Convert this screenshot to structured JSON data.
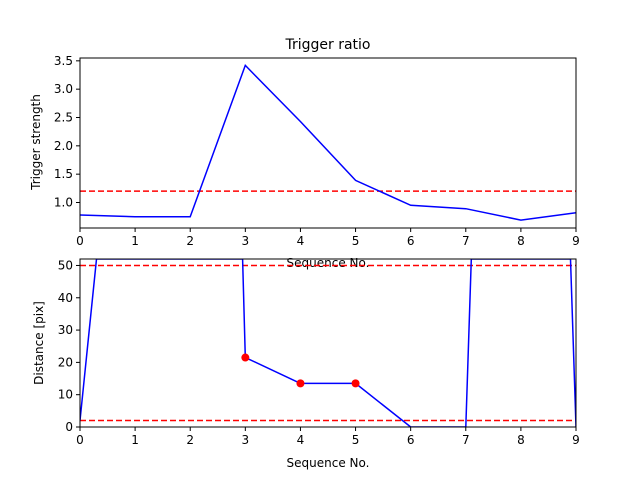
{
  "chart_data": [
    {
      "type": "line",
      "title": "Trigger ratio",
      "xlabel": "Sequence No.",
      "ylabel": "Trigger strength",
      "xlim": [
        0,
        9
      ],
      "ylim": [
        0.55,
        3.55
      ],
      "xticks": [
        "0",
        "1",
        "2",
        "3",
        "4",
        "5",
        "6",
        "7",
        "8",
        "9"
      ],
      "yticks": [
        "1.0",
        "1.5",
        "2.0",
        "2.5",
        "3.0",
        "3.5"
      ],
      "grid": false,
      "series": [
        {
          "color": "#0000ff",
          "style": "solid",
          "x": [
            0,
            1,
            2,
            3,
            4,
            5,
            6,
            7,
            8,
            9
          ],
          "y": [
            0.78,
            0.75,
            0.75,
            3.42,
            2.43,
            1.39,
            0.95,
            0.89,
            0.69,
            0.82
          ]
        }
      ],
      "reference_lines": [
        {
          "axis": "y",
          "value": 1.2,
          "color": "#ff0000",
          "style": "dashed"
        }
      ]
    },
    {
      "type": "line",
      "title": "",
      "xlabel": "Sequence No.",
      "ylabel": "Distance [pix]",
      "xlim": [
        0,
        9
      ],
      "ylim": [
        0,
        52
      ],
      "xticks": [
        "0",
        "1",
        "2",
        "3",
        "4",
        "5",
        "6",
        "7",
        "8",
        "9"
      ],
      "yticks": [
        "0",
        "10",
        "20",
        "30",
        "40",
        "50"
      ],
      "grid": false,
      "series": [
        {
          "color": "#0000ff",
          "style": "solid",
          "x": [
            0,
            0.3,
            2.95,
            3,
            4,
            5,
            6,
            7,
            7.1,
            8.9,
            9
          ],
          "y": [
            2,
            52,
            52,
            21.5,
            13.5,
            13.5,
            0,
            0,
            52,
            52,
            0
          ]
        }
      ],
      "markers": {
        "color": "#ff0000",
        "x": [
          3,
          4,
          5
        ],
        "y": [
          21.5,
          13.5,
          13.5
        ]
      },
      "reference_lines": [
        {
          "axis": "y",
          "value": 50,
          "color": "#ff0000",
          "style": "dashed"
        },
        {
          "axis": "y",
          "value": 2,
          "color": "#ff0000",
          "style": "dashed"
        }
      ]
    }
  ]
}
